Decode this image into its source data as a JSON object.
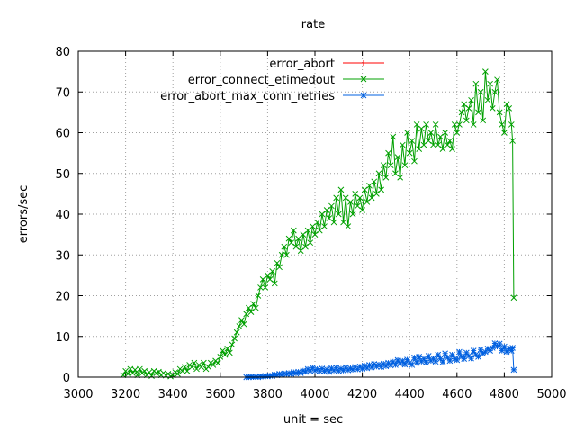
{
  "chart_data": {
    "type": "line",
    "title": "rate",
    "xlabel": "unit = sec",
    "ylabel": "errors/sec",
    "xlim": [
      3000,
      5000
    ],
    "ylim": [
      0,
      80
    ],
    "xticks": [
      3000,
      3200,
      3400,
      3600,
      3800,
      4000,
      4200,
      4400,
      4600,
      4800,
      5000
    ],
    "yticks": [
      0,
      10,
      20,
      30,
      40,
      50,
      60,
      70,
      80
    ],
    "grid": true,
    "legend_position": "top-right",
    "colors": {
      "error_abort": "#ff0000",
      "error_connect_etimedout": "#00a000",
      "error_abort_max_conn_retries": "#0060e0"
    },
    "series": [
      {
        "name": "error_abort",
        "points": []
      },
      {
        "name": "error_connect_etimedout",
        "points": [
          [
            3190,
            0.5
          ],
          [
            3200,
            1.5
          ],
          [
            3210,
            0.8
          ],
          [
            3220,
            2
          ],
          [
            3230,
            1
          ],
          [
            3240,
            1.8
          ],
          [
            3250,
            0.5
          ],
          [
            3260,
            2
          ],
          [
            3270,
            1
          ],
          [
            3280,
            1.5
          ],
          [
            3290,
            0.5
          ],
          [
            3300,
            1.2
          ],
          [
            3310,
            0.3
          ],
          [
            3320,
            1.5
          ],
          [
            3330,
            1
          ],
          [
            3340,
            1.3
          ],
          [
            3350,
            0.5
          ],
          [
            3360,
            1
          ],
          [
            3370,
            0.4
          ],
          [
            3380,
            0.8
          ],
          [
            3390,
            0.2
          ],
          [
            3400,
            0.5
          ],
          [
            3410,
            1.2
          ],
          [
            3420,
            0.8
          ],
          [
            3430,
            2
          ],
          [
            3440,
            1.5
          ],
          [
            3450,
            2.5
          ],
          [
            3460,
            1.5
          ],
          [
            3470,
            3
          ],
          [
            3480,
            2.5
          ],
          [
            3490,
            3.5
          ],
          [
            3500,
            2
          ],
          [
            3510,
            3
          ],
          [
            3520,
            2.5
          ],
          [
            3530,
            3.5
          ],
          [
            3540,
            2
          ],
          [
            3550,
            2.5
          ],
          [
            3560,
            3.5
          ],
          [
            3570,
            3
          ],
          [
            3580,
            4
          ],
          [
            3590,
            3.5
          ],
          [
            3600,
            5
          ],
          [
            3610,
            6.5
          ],
          [
            3620,
            5.5
          ],
          [
            3630,
            7
          ],
          [
            3640,
            6
          ],
          [
            3650,
            8
          ],
          [
            3660,
            9.5
          ],
          [
            3670,
            11
          ],
          [
            3680,
            12.5
          ],
          [
            3690,
            14
          ],
          [
            3700,
            13
          ],
          [
            3710,
            15.5
          ],
          [
            3720,
            17
          ],
          [
            3730,
            16
          ],
          [
            3740,
            18
          ],
          [
            3750,
            17
          ],
          [
            3760,
            20
          ],
          [
            3770,
            22
          ],
          [
            3780,
            24
          ],
          [
            3790,
            22
          ],
          [
            3800,
            25
          ],
          [
            3810,
            24
          ],
          [
            3820,
            26
          ],
          [
            3830,
            23
          ],
          [
            3840,
            28
          ],
          [
            3850,
            27
          ],
          [
            3860,
            30
          ],
          [
            3870,
            32
          ],
          [
            3880,
            30
          ],
          [
            3890,
            34
          ],
          [
            3900,
            33
          ],
          [
            3910,
            36
          ],
          [
            3920,
            32
          ],
          [
            3930,
            34
          ],
          [
            3940,
            31
          ],
          [
            3950,
            35
          ],
          [
            3960,
            32
          ],
          [
            3970,
            36
          ],
          [
            3980,
            33
          ],
          [
            3990,
            37
          ],
          [
            4000,
            35
          ],
          [
            4010,
            38
          ],
          [
            4020,
            36
          ],
          [
            4030,
            40
          ],
          [
            4040,
            37
          ],
          [
            4050,
            41
          ],
          [
            4060,
            39
          ],
          [
            4070,
            42
          ],
          [
            4080,
            38
          ],
          [
            4090,
            44
          ],
          [
            4100,
            40
          ],
          [
            4110,
            46
          ],
          [
            4120,
            38
          ],
          [
            4130,
            44
          ],
          [
            4140,
            37
          ],
          [
            4150,
            43
          ],
          [
            4160,
            40
          ],
          [
            4170,
            45
          ],
          [
            4180,
            42
          ],
          [
            4190,
            44
          ],
          [
            4200,
            41
          ],
          [
            4210,
            46
          ],
          [
            4220,
            43
          ],
          [
            4230,
            47
          ],
          [
            4240,
            44
          ],
          [
            4250,
            48
          ],
          [
            4260,
            45
          ],
          [
            4270,
            50
          ],
          [
            4280,
            46
          ],
          [
            4290,
            52
          ],
          [
            4300,
            49
          ],
          [
            4310,
            55
          ],
          [
            4320,
            52
          ],
          [
            4330,
            59
          ],
          [
            4340,
            50
          ],
          [
            4350,
            54
          ],
          [
            4360,
            49
          ],
          [
            4370,
            57
          ],
          [
            4380,
            52
          ],
          [
            4390,
            60
          ],
          [
            4400,
            55
          ],
          [
            4410,
            58
          ],
          [
            4420,
            53
          ],
          [
            4430,
            62
          ],
          [
            4440,
            56
          ],
          [
            4450,
            61
          ],
          [
            4460,
            57
          ],
          [
            4470,
            62
          ],
          [
            4480,
            58
          ],
          [
            4490,
            60
          ],
          [
            4500,
            57
          ],
          [
            4510,
            62
          ],
          [
            4520,
            57
          ],
          [
            4530,
            59
          ],
          [
            4540,
            56
          ],
          [
            4550,
            60
          ],
          [
            4560,
            57
          ],
          [
            4570,
            58
          ],
          [
            4580,
            56
          ],
          [
            4590,
            62
          ],
          [
            4600,
            60
          ],
          [
            4610,
            62
          ],
          [
            4620,
            65
          ],
          [
            4630,
            67
          ],
          [
            4640,
            63
          ],
          [
            4650,
            66
          ],
          [
            4660,
            68
          ],
          [
            4670,
            62
          ],
          [
            4680,
            72
          ],
          [
            4690,
            65
          ],
          [
            4700,
            70
          ],
          [
            4710,
            63
          ],
          [
            4720,
            75
          ],
          [
            4730,
            68
          ],
          [
            4740,
            72
          ],
          [
            4750,
            66
          ],
          [
            4760,
            70
          ],
          [
            4770,
            73
          ],
          [
            4780,
            65
          ],
          [
            4790,
            62
          ],
          [
            4800,
            60
          ],
          [
            4810,
            67
          ],
          [
            4820,
            66
          ],
          [
            4830,
            62
          ],
          [
            4835,
            58
          ],
          [
            4840,
            19.5
          ]
        ]
      },
      {
        "name": "error_abort_max_conn_retries",
        "points": [
          [
            3710,
            0
          ],
          [
            3720,
            0
          ],
          [
            3730,
            0.1
          ],
          [
            3740,
            0
          ],
          [
            3750,
            0.1
          ],
          [
            3760,
            0
          ],
          [
            3770,
            0.2
          ],
          [
            3780,
            0.1
          ],
          [
            3790,
            0.3
          ],
          [
            3800,
            0.2
          ],
          [
            3810,
            0.4
          ],
          [
            3820,
            0.3
          ],
          [
            3830,
            0.6
          ],
          [
            3840,
            0.5
          ],
          [
            3850,
            0.8
          ],
          [
            3860,
            0.6
          ],
          [
            3870,
            0.9
          ],
          [
            3880,
            0.7
          ],
          [
            3890,
            1
          ],
          [
            3900,
            0.8
          ],
          [
            3910,
            1.2
          ],
          [
            3920,
            0.9
          ],
          [
            3930,
            1.3
          ],
          [
            3940,
            1
          ],
          [
            3950,
            1.6
          ],
          [
            3960,
            1.3
          ],
          [
            3970,
            2
          ],
          [
            3980,
            1.5
          ],
          [
            3990,
            2.3
          ],
          [
            4000,
            1.6
          ],
          [
            4010,
            2
          ],
          [
            4020,
            1.5
          ],
          [
            4030,
            2.1
          ],
          [
            4040,
            1.4
          ],
          [
            4050,
            1.9
          ],
          [
            4060,
            1.3
          ],
          [
            4070,
            2.2
          ],
          [
            4080,
            1.6
          ],
          [
            4090,
            2.3
          ],
          [
            4100,
            1.5
          ],
          [
            4110,
            2.1
          ],
          [
            4120,
            1.6
          ],
          [
            4130,
            2.4
          ],
          [
            4140,
            1.7
          ],
          [
            4150,
            2.2
          ],
          [
            4160,
            1.8
          ],
          [
            4170,
            2.5
          ],
          [
            4180,
            1.9
          ],
          [
            4190,
            2.6
          ],
          [
            4200,
            2
          ],
          [
            4210,
            2.8
          ],
          [
            4220,
            2.2
          ],
          [
            4230,
            3
          ],
          [
            4240,
            2.4
          ],
          [
            4250,
            3.2
          ],
          [
            4260,
            2.6
          ],
          [
            4270,
            3.1
          ],
          [
            4280,
            2.5
          ],
          [
            4290,
            3.3
          ],
          [
            4300,
            2.7
          ],
          [
            4310,
            3.5
          ],
          [
            4320,
            2.9
          ],
          [
            4330,
            3.8
          ],
          [
            4340,
            3
          ],
          [
            4350,
            4.2
          ],
          [
            4360,
            3.3
          ],
          [
            4370,
            4
          ],
          [
            4380,
            3.1
          ],
          [
            4390,
            4.3
          ],
          [
            4400,
            3.5
          ],
          [
            4410,
            3
          ],
          [
            4420,
            4.8
          ],
          [
            4430,
            3.5
          ],
          [
            4440,
            5
          ],
          [
            4450,
            3.8
          ],
          [
            4460,
            4.5
          ],
          [
            4470,
            3.6
          ],
          [
            4480,
            5.2
          ],
          [
            4490,
            4
          ],
          [
            4500,
            4.6
          ],
          [
            4510,
            3.8
          ],
          [
            4520,
            5.5
          ],
          [
            4530,
            4.5
          ],
          [
            4540,
            3.7
          ],
          [
            4550,
            5.8
          ],
          [
            4560,
            4.8
          ],
          [
            4570,
            4
          ],
          [
            4580,
            5.5
          ],
          [
            4590,
            4.5
          ],
          [
            4600,
            4.2
          ],
          [
            4610,
            6.2
          ],
          [
            4620,
            5
          ],
          [
            4630,
            4.5
          ],
          [
            4640,
            6
          ],
          [
            4650,
            5.2
          ],
          [
            4660,
            4.6
          ],
          [
            4670,
            6.5
          ],
          [
            4680,
            5.5
          ],
          [
            4690,
            5
          ],
          [
            4700,
            6.8
          ],
          [
            4710,
            5.8
          ],
          [
            4720,
            6.2
          ],
          [
            4730,
            7
          ],
          [
            4740,
            6.5
          ],
          [
            4750,
            7.2
          ],
          [
            4760,
            8.3
          ],
          [
            4770,
            7.5
          ],
          [
            4780,
            8.2
          ],
          [
            4790,
            6.5
          ],
          [
            4800,
            7.5
          ],
          [
            4810,
            6.2
          ],
          [
            4820,
            7
          ],
          [
            4830,
            6.5
          ],
          [
            4835,
            7.2
          ],
          [
            4840,
            1.8
          ]
        ]
      }
    ]
  }
}
